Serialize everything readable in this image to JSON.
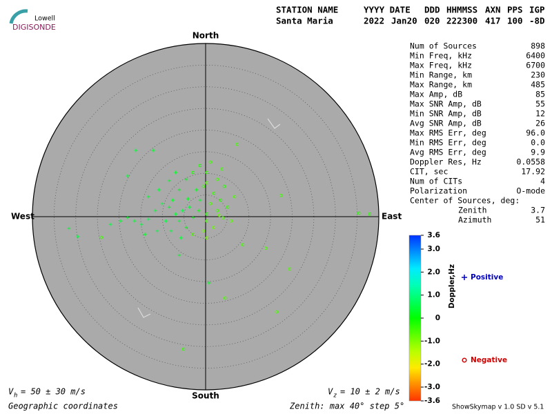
{
  "logo": {
    "top": "Lowell",
    "bottom": "DIGISONDE"
  },
  "header": {
    "columns": [
      "STATION NAME",
      "YYYY DATE",
      "DDD",
      "HHMMSS",
      "AXN",
      "PPS",
      "IGP"
    ],
    "values": [
      "Santa Maria",
      "2022",
      "Jan20",
      "020",
      "222300",
      "417",
      "100",
      "-8D"
    ]
  },
  "stats": [
    [
      "Num of Sources",
      "898"
    ],
    [
      "Min Freq, kHz",
      "6400"
    ],
    [
      "Max Freq, kHz",
      "6700"
    ],
    [
      "Min Range, km",
      "230"
    ],
    [
      "Max Range, km",
      "485"
    ],
    [
      "Max Amp, dB",
      "85"
    ],
    [
      "Max SNR Amp, dB",
      "55"
    ],
    [
      "Min SNR Amp, dB",
      "12"
    ],
    [
      "Avg SNR Amp, dB",
      "26"
    ],
    [
      "Max RMS Err, deg",
      "96.0"
    ],
    [
      "Min RMS Err, deg",
      "0.0"
    ],
    [
      "Avg RMS Err, deg",
      "9.9"
    ],
    [
      "Doppler Res, Hz",
      "0.0558"
    ],
    [
      "CIT, sec",
      "17.92"
    ],
    [
      "Num of CITs",
      "4"
    ],
    [
      "Polarization",
      "O-mode"
    ]
  ],
  "center": {
    "title": "Center of Sources, deg:",
    "rows": [
      [
        "Zenith",
        "3.7"
      ],
      [
        "Azimuth",
        "51"
      ]
    ]
  },
  "footer": {
    "vh": {
      "symbol": "V",
      "sub": "h",
      "text": "= 50 ± 30 m/s"
    },
    "vz": {
      "symbol": "V",
      "sub": "z",
      "text": "= 10 ± 2 m/s"
    },
    "coords": "Geographic coordinates",
    "zenith": "Zenith: max 40°  step 5°",
    "version": "ShowSkymap v 1.0  SD v 5.1"
  },
  "chart_data": {
    "type": "skymap",
    "directions": {
      "north": "North",
      "south": "South",
      "east": "East",
      "west": "West"
    },
    "rlim": [
      0,
      40
    ],
    "rticks": [
      5,
      10,
      15,
      20,
      25,
      30,
      35,
      40
    ],
    "zlim": [
      -3.6,
      3.6
    ],
    "zticks": [
      3.6,
      {
        "value": 3,
        "label": "3.0"
      },
      {
        "value": 2,
        "label": "2.0"
      },
      {
        "value": 1,
        "label": "1.0"
      },
      0,
      {
        "value": -1,
        "label": "-1.0"
      },
      {
        "value": -2,
        "label": "-2.0"
      },
      {
        "value": -3,
        "label": "-3.0"
      },
      -3.6
    ],
    "zlabel": "Doppler,Hz",
    "series": [
      {
        "name": "Positive",
        "marker": "plus",
        "color": "#0000c0",
        "x": [
          0.8,
          -16.1,
          -12.1,
          -18.0,
          -31.6,
          -29.5,
          -6.1,
          -1.3,
          -3.7,
          -5.3,
          -6.9,
          -8.4,
          -10.0,
          -11.6,
          -13.2,
          -14.8,
          -16.4,
          -18.0,
          -9.2,
          -6.1,
          -2.9,
          -4.5,
          -7.6,
          -6.1,
          -4.5,
          -10.8,
          -13.2,
          -14.0,
          -11.2,
          -1.6,
          -4.1,
          -6.9,
          -8.4,
          -8.0,
          -5.7,
          -19.6,
          -22.0,
          -2.1
        ],
        "y": [
          -15.3,
          15.3,
          15.3,
          9.4,
          -2.7,
          -4.6,
          -8.9,
          3.8,
          2.2,
          1.4,
          0.6,
          2.2,
          3.0,
          1.4,
          -0.6,
          -1.8,
          -1.0,
          -0.2,
          -1.0,
          -1.0,
          -0.2,
          -2.5,
          3.8,
          6.2,
          8.6,
          6.2,
          4.6,
          -4.1,
          -3.3,
          1.4,
          4.1,
          10.2,
          8.3,
          -3.3,
          -4.9,
          -1.0,
          -1.8,
          6.2
        ],
        "doppler": [
          0.3,
          0.4,
          0.3,
          0.4,
          0.4,
          0.5,
          0.3,
          0.3,
          0.4,
          0.5,
          0.4,
          0.3,
          0.5,
          0.4,
          0.6,
          0.5,
          0.4,
          0.3,
          0.5,
          0.4,
          0.2,
          0.1,
          0.3,
          0.2,
          0.2,
          0.4,
          0.4,
          0.3,
          0.5,
          0.1,
          0.2,
          0.3,
          0.3,
          0.5,
          0.4,
          0.4,
          0.5,
          0.2
        ]
      },
      {
        "name": "Negative",
        "marker": "circle",
        "color": "#d00000",
        "x": [
          35.4,
          37.9,
          17.4,
          19.4,
          16.4,
          4.5,
          -5.1,
          7.3,
          -24.1,
          13.9,
          8.6,
          4.0,
          -0.5,
          0.3,
          1.9,
          3.5,
          1.1,
          0.3,
          2.7,
          5.1,
          6.7,
          5.9,
          1.9,
          -0.5,
          -2.9,
          -2.9,
          0.3,
          2.7,
          4.3,
          -1.3,
          1.1,
          0.3,
          3.8,
          3.2,
          0.3
        ],
        "y": [
          0.8,
          0.6,
          4.9,
          -12.1,
          -22.0,
          -18.8,
          -30.6,
          16.7,
          -4.8,
          -7.3,
          -6.5,
          -0.3,
          7.0,
          7.8,
          5.4,
          3.8,
          3.0,
          0.6,
          1.4,
          2.2,
          4.6,
          -1.0,
          -2.5,
          -3.3,
          -4.1,
          10.2,
          10.2,
          8.6,
          7.0,
          11.8,
          12.6,
          -1.0,
          11.0,
          0.3,
          -4.9
        ],
        "doppler": [
          -0.3,
          -0.3,
          -0.5,
          -0.6,
          -0.6,
          -0.6,
          -0.4,
          -0.5,
          -0.5,
          -0.6,
          -0.5,
          -0.6,
          -0.5,
          -0.7,
          -0.4,
          -0.3,
          -0.6,
          -0.3,
          -0.5,
          -0.4,
          -0.6,
          -0.7,
          -0.8,
          -0.9,
          -0.6,
          -0.2,
          -0.4,
          -0.5,
          -0.3,
          -0.2,
          -0.5,
          -0.6,
          -0.5,
          -0.8,
          -0.9
        ]
      }
    ]
  }
}
